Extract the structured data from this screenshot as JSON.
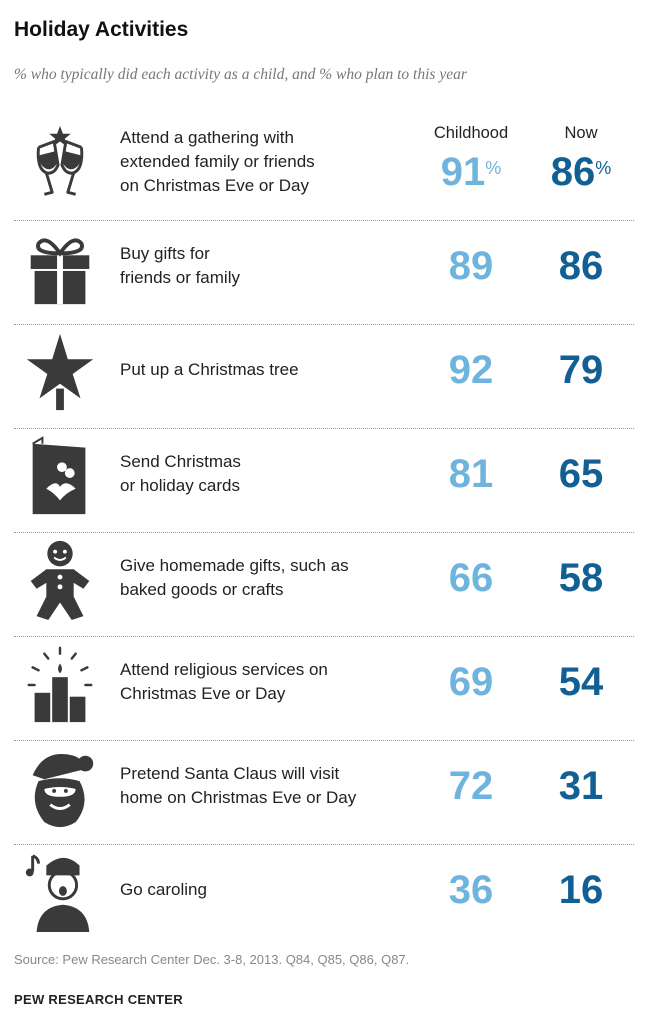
{
  "chart_data": {
    "type": "table",
    "title": "Holiday Activities",
    "subtitle": "% who typically did each activity as a child, and % who plan to this year",
    "columns": [
      "Childhood",
      "Now"
    ],
    "rows": [
      {
        "activity": "Attend a gathering with extended family or friends on Christmas Eve or Day",
        "lines": [
          "Attend a gathering with",
          "extended family or friends",
          "on Christmas Eve or Day"
        ],
        "childhood": 91,
        "now": 86,
        "icon": "champagne-glasses-icon"
      },
      {
        "activity": "Buy gifts for friends or family",
        "lines": [
          "Buy gifts for",
          "friends or family"
        ],
        "childhood": 89,
        "now": 86,
        "icon": "gift-box-icon"
      },
      {
        "activity": "Put up a Christmas tree",
        "lines": [
          "Put up a Christmas tree"
        ],
        "childhood": 92,
        "now": 79,
        "icon": "tree-topper-star-icon"
      },
      {
        "activity": "Send Christmas or holiday cards",
        "lines": [
          "Send Christmas",
          "or holiday cards"
        ],
        "childhood": 81,
        "now": 65,
        "icon": "holiday-card-icon"
      },
      {
        "activity": "Give homemade gifts, such as baked goods or crafts",
        "lines": [
          "Give homemade gifts, such as",
          "baked goods or crafts"
        ],
        "childhood": 66,
        "now": 58,
        "icon": "gingerbread-man-icon"
      },
      {
        "activity": "Attend religious services on Christmas Eve or Day",
        "lines": [
          "Attend religious services on",
          "Christmas Eve or Day"
        ],
        "childhood": 69,
        "now": 54,
        "icon": "candles-icon"
      },
      {
        "activity": "Pretend Santa Claus will visit home on Christmas Eve or Day",
        "lines": [
          "Pretend Santa Claus will visit",
          "home on Christmas Eve or Day"
        ],
        "childhood": 72,
        "now": 31,
        "icon": "santa-claus-icon"
      },
      {
        "activity": "Go caroling",
        "lines": [
          "Go caroling"
        ],
        "childhood": 36,
        "now": 16,
        "icon": "caroler-icon"
      }
    ],
    "percent_sign": "%"
  },
  "source": "Source: Pew Research Center Dec. 3-8, 2013. Q84, Q85, Q86, Q87.",
  "brand": "PEW RESEARCH CENTER",
  "colors": {
    "childhood": "#6fb4dc",
    "now": "#115f93",
    "icon": "#3a3a3a"
  }
}
